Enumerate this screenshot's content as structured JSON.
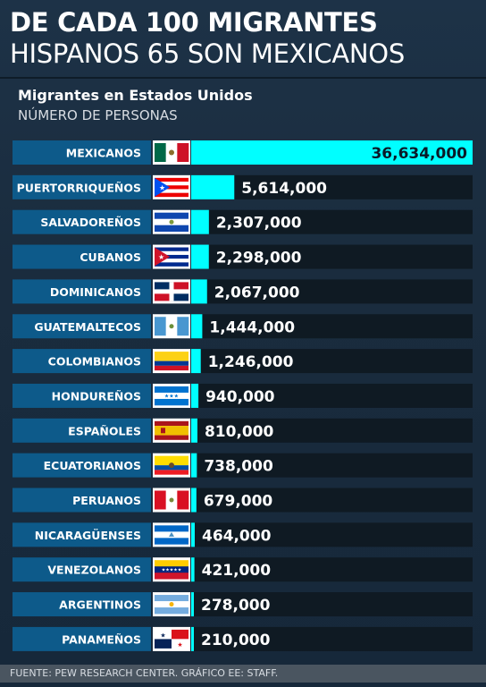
{
  "header": {
    "title_line1": "DE CADA 100 MIGRANTES",
    "title_line2": "HISPANOS 65 SON MEXICANOS",
    "subtitle": "Migrantes en Estados Unidos",
    "units": "NÚMERO DE PERSONAS"
  },
  "footer": {
    "source": "FUENTE: PEW RESEARCH CENTER. GRÁFICO EE: STAFF."
  },
  "colors": {
    "bar": "#00ffff",
    "label_box": "#0d5a8a",
    "track": "#0f1a23",
    "value_inside": "#0a1a28",
    "value_outside": "#ffffff"
  },
  "chart_data": {
    "type": "bar",
    "orientation": "horizontal",
    "categories": [
      "MEXICANOS",
      "PUERTORRIQUEÑOS",
      "SALVADOREÑOS",
      "CUBANOS",
      "DOMINICANOS",
      "GUATEMALTECOS",
      "COLOMBIANOS",
      "HONDUREÑOS",
      "ESPAÑOLES",
      "ECUATORIANOS",
      "PERUANOS",
      "NICARAGÜENSES",
      "VENEZOLANOS",
      "ARGENTINOS",
      "PANAMEÑOS"
    ],
    "values": [
      36634000,
      5614000,
      2307000,
      2298000,
      2067000,
      1444000,
      1246000,
      940000,
      810000,
      738000,
      679000,
      464000,
      421000,
      278000,
      210000
    ],
    "value_labels": [
      "36,634,000",
      "5,614,000",
      "2,307,000",
      "2,298,000",
      "2,067,000",
      "1,444,000",
      "1,246,000",
      "940,000",
      "810,000",
      "738,000",
      "679,000",
      "464,000",
      "421,000",
      "278,000",
      "210,000"
    ],
    "flags": [
      "mexico-flag",
      "puerto-rico-flag",
      "el-salvador-flag",
      "cuba-flag",
      "dominican-republic-flag",
      "guatemala-flag",
      "colombia-flag",
      "honduras-flag",
      "spain-flag",
      "ecuador-flag",
      "peru-flag",
      "nicaragua-flag",
      "venezuela-flag",
      "argentina-flag",
      "panama-flag"
    ],
    "xlim": [
      0,
      36634000
    ]
  }
}
